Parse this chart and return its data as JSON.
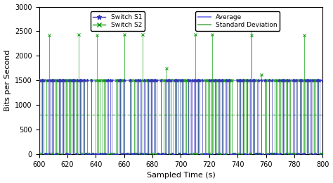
{
  "xlim": [
    600,
    800
  ],
  "ylim": [
    0,
    3000
  ],
  "xticks": [
    600,
    620,
    640,
    660,
    680,
    700,
    720,
    740,
    760,
    780,
    800
  ],
  "yticks": [
    0,
    500,
    1000,
    1500,
    2000,
    2500,
    3000
  ],
  "xlabel": "Sampled Time (s)",
  "ylabel": "Bits per Second",
  "s1_color": "#3333bb",
  "s2_color": "#009900",
  "avg_color": "#8888ee",
  "std_color": "#77bb77",
  "avg_value": 1500,
  "std_value": 800,
  "background_color": "#ffffff",
  "legend1_labels": [
    "Switch S1",
    "Switch S2"
  ],
  "legend2_labels": [
    "Average",
    "Standard Deviation"
  ],
  "s2_spike_times": [
    607,
    628,
    641,
    660,
    673,
    690,
    710,
    722,
    750,
    757,
    787
  ],
  "s2_spike_vals": [
    2420,
    2430,
    2420,
    2430,
    2430,
    1750,
    2430,
    2430,
    2420,
    1620,
    2420
  ],
  "s1_spike_times": [
    750
  ],
  "s1_spike_vals": [
    2700
  ]
}
